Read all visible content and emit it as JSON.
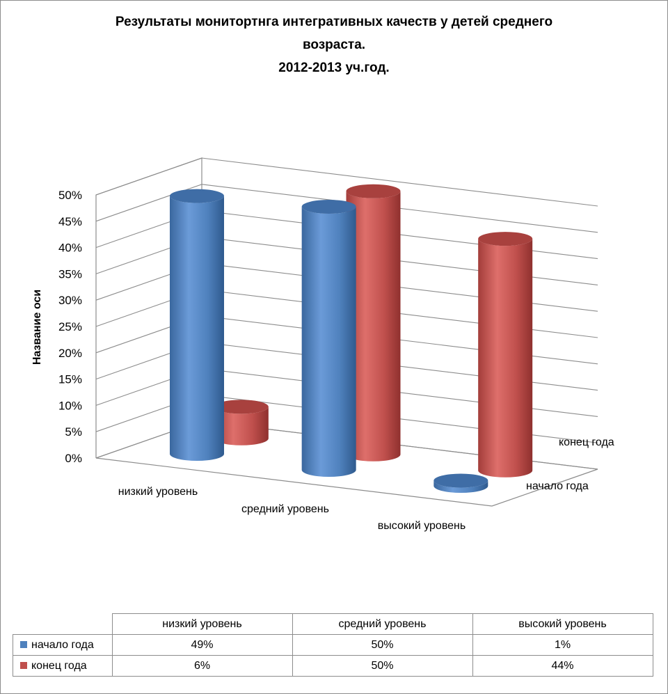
{
  "title_lines": [
    "Результаты монитортнга интегративных качеств у детей среднего",
    "возраста.",
    "2012-2013 уч.год."
  ],
  "colors": {
    "series_1": "#4f81bd",
    "series_2": "#c0504d"
  },
  "chart_data": {
    "type": "bar",
    "subtype": "3d-cylinder",
    "title": "Результаты монитортнга интегративных качеств у детей среднего возраста. 2012-2013 уч.год.",
    "categories": [
      "низкий уровень",
      "средний уровень",
      "высокий уровень"
    ],
    "series": [
      {
        "name": "начало года",
        "values": [
          0.49,
          0.5,
          0.01
        ],
        "color": "#4f81bd"
      },
      {
        "name": "конец года",
        "values": [
          0.06,
          0.5,
          0.44
        ],
        "color": "#c0504d"
      }
    ],
    "ylabel": "Название оси",
    "ylim": [
      0,
      0.5
    ],
    "yticks": [
      "0%",
      "5%",
      "10%",
      "15%",
      "20%",
      "25%",
      "30%",
      "35%",
      "40%",
      "45%",
      "50%"
    ],
    "depth_labels": [
      "начало года",
      "конец года"
    ],
    "grid": true,
    "legend": "data-table-bottom"
  },
  "table": {
    "headers": [
      "низкий уровень",
      "средний уровень",
      "высокий уровень"
    ],
    "rows": [
      {
        "name": "начало года",
        "cells": [
          "49%",
          "50%",
          "1%"
        ]
      },
      {
        "name": "конец года",
        "cells": [
          "6%",
          "50%",
          "44%"
        ]
      }
    ]
  }
}
